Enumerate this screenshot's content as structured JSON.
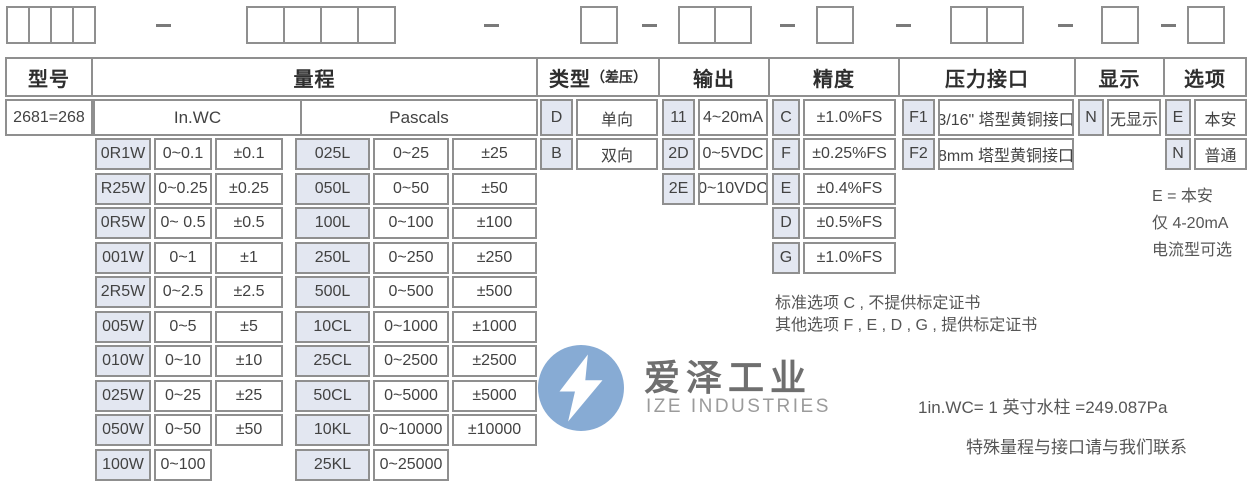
{
  "top_row": {
    "box_groups": [
      4,
      4,
      1,
      2,
      1,
      2,
      1,
      1
    ]
  },
  "model": {
    "label": "型号",
    "code": "2681=268"
  },
  "range": {
    "label": "量程",
    "units": [
      "In.WC",
      "Pascals"
    ],
    "inwc": [
      [
        "0R1W",
        "0~0.1",
        "±0.1"
      ],
      [
        "R25W",
        "0~0.25",
        "±0.25"
      ],
      [
        "0R5W",
        "0~ 0.5",
        "±0.5"
      ],
      [
        "001W",
        "0~1",
        "±1"
      ],
      [
        "2R5W",
        "0~2.5",
        "±2.5"
      ],
      [
        "005W",
        "0~5",
        "±5"
      ],
      [
        "010W",
        "0~10",
        "±10"
      ],
      [
        "025W",
        "0~25",
        "±25"
      ],
      [
        "050W",
        "0~50",
        "±50"
      ],
      [
        "100W",
        "0~100",
        null
      ]
    ],
    "pascals": [
      [
        "025L",
        "0~25",
        "±25"
      ],
      [
        "050L",
        "0~50",
        "±50"
      ],
      [
        "100L",
        "0~100",
        "±100"
      ],
      [
        "250L",
        "0~250",
        "±250"
      ],
      [
        "500L",
        "0~500",
        "±500"
      ],
      [
        "10CL",
        "0~1000",
        "±1000"
      ],
      [
        "25CL",
        "0~2500",
        "±2500"
      ],
      [
        "50CL",
        "0~5000",
        "±5000"
      ],
      [
        "10KL",
        "0~10000",
        "±10000"
      ],
      [
        "25KL",
        "0~25000",
        null
      ]
    ]
  },
  "type": {
    "label": "类型",
    "sublabel": "（差压）",
    "rows": [
      [
        "D",
        "单向"
      ],
      [
        "B",
        "双向"
      ]
    ]
  },
  "output": {
    "label": "输出",
    "rows": [
      [
        "11",
        "4~20mA"
      ],
      [
        "2D",
        "0~5VDC"
      ],
      [
        "2E",
        "0~10VDC"
      ]
    ]
  },
  "accuracy": {
    "label": "精度",
    "rows": [
      [
        "C",
        "±1.0%FS"
      ],
      [
        "F",
        "±0.25%FS"
      ],
      [
        "E",
        "±0.4%FS"
      ],
      [
        "D",
        "±0.5%FS"
      ],
      [
        "G",
        "±1.0%FS"
      ]
    ]
  },
  "port": {
    "label": "压力接口",
    "rows": [
      [
        "F1",
        "3/16\" 塔型黄铜接口"
      ],
      [
        "F2",
        "8mm 塔型黄铜接口"
      ]
    ]
  },
  "display": {
    "label": "显示",
    "rows": [
      [
        "N",
        "无显示"
      ]
    ]
  },
  "option": {
    "label": "选项",
    "rows": [
      [
        "E",
        "本安"
      ],
      [
        "N",
        "普通"
      ]
    ]
  },
  "notes": {
    "accuracy": [
      "标准选项 C , 不提供标定证书",
      "其他选项 F , E , D , G , 提供标定证书"
    ],
    "option": [
      "E = 本安",
      "仅 4-20mA",
      "电流型可选"
    ],
    "unit": "1in.WC= 1 英寸水柱 =249.087Pa",
    "contact": "特殊量程与接口请与我们联系"
  },
  "logo": {
    "cn": "爱泽工业",
    "en": "IZE INDUSTRIES"
  },
  "colors": {
    "border": "#8f8f8f",
    "cell_fill": "#e3e7f1",
    "brand_blue": "#87abd4"
  }
}
